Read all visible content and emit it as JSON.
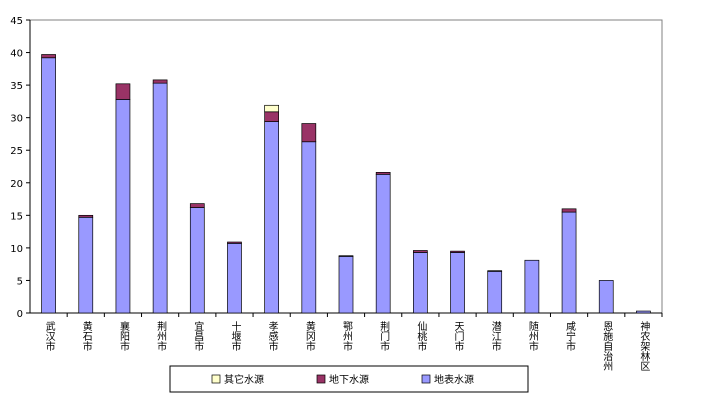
{
  "chart_data": {
    "type": "bar",
    "categories": [
      "武汉市",
      "黄石市",
      "襄阳市",
      "荆州市",
      "宜昌市",
      "十堰市",
      "孝感市",
      "黄冈市",
      "鄂州市",
      "荆门市",
      "仙桃市",
      "天门市",
      "潜江市",
      "随州市",
      "咸宁市",
      "恩施自治州",
      "神农架林区"
    ],
    "series": [
      {
        "name": "其它水源",
        "color": "#ffffcc",
        "values": [
          0,
          0,
          0,
          0,
          0,
          0,
          1.0,
          0,
          0,
          0,
          0,
          0,
          0,
          0,
          0,
          0,
          0
        ]
      },
      {
        "name": "地下水源",
        "color": "#993366",
        "values": [
          0.5,
          0.3,
          2.4,
          0.5,
          0.6,
          0.2,
          1.5,
          2.8,
          0.1,
          0.3,
          0.3,
          0.2,
          0.1,
          0,
          0.5,
          0,
          0
        ]
      },
      {
        "name": "地表水源",
        "color": "#9999ff",
        "values": [
          39.2,
          14.7,
          32.8,
          35.3,
          16.2,
          10.7,
          29.4,
          26.3,
          8.7,
          21.3,
          9.3,
          9.3,
          6.4,
          8.1,
          15.5,
          5.0,
          0.3
        ]
      }
    ],
    "stacked": true,
    "ylim": [
      0,
      45
    ],
    "yticks": [
      0,
      5,
      10,
      15,
      20,
      25,
      30,
      35,
      40,
      45
    ],
    "grid": false
  }
}
